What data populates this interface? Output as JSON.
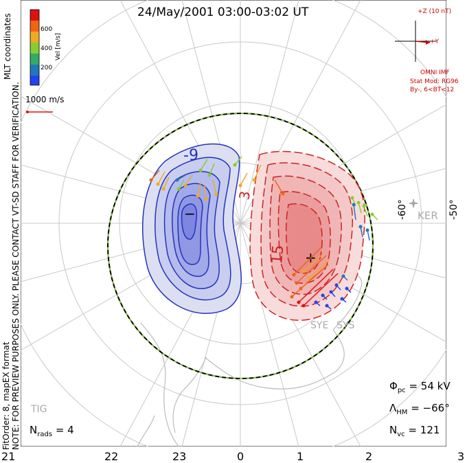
{
  "title": "24/May/2001 03:00-03:02 UT",
  "colorbar": {
    "tick_labels": [
      "600",
      "400",
      "200"
    ],
    "label": "Vel [m/s]",
    "colors": [
      "#dd1111",
      "#ee6611",
      "#eeaa22",
      "#88cc33",
      "#33aa66",
      "#2277bb",
      "#2244ee"
    ]
  },
  "coordinates_label": "MLT coordinates",
  "reference_vector_label": "1000 m/s",
  "side_notice": "NOTE: FOR PREVIEW PURPOSES ONLY. PLEASE CONTACT VT-SD STAFF FOR VERIFICATION.",
  "fit_info": "FitOrder: 8, mapEX format",
  "imf": {
    "z_label": "+Z (10 nT)",
    "y_label": "+Y",
    "source": "OMNI IMF",
    "model_line1": "Stat Mod: RG96",
    "model_line2": "By-, 6<BT<12"
  },
  "contour_labels": {
    "neg": "-9",
    "pos1": "3",
    "pos2": "15"
  },
  "mlt_labels": [
    "21",
    "22",
    "23",
    "0",
    "1",
    "2",
    "3"
  ],
  "lat_labels": [
    "-60°",
    "-50°"
  ],
  "stations": [
    "KER",
    "SYE",
    "SYS",
    "TIG"
  ],
  "stats": {
    "nrads_sym": "N",
    "nrads_sub": "rads",
    "nrads_val": "= 4",
    "phi_sym": "Φ",
    "phi_sub": "pc",
    "phi_val": "= 54 kV",
    "lam_sym": "Λ",
    "lam_sub": "HM",
    "lam_val": "= −66°",
    "nvc_sym": "N",
    "nvc_sub": "vc",
    "nvc_val": "= 121"
  },
  "accent_colors": {
    "negative": "#2233bb",
    "positive": "#cc2222",
    "hmb": "#88cc33"
  }
}
